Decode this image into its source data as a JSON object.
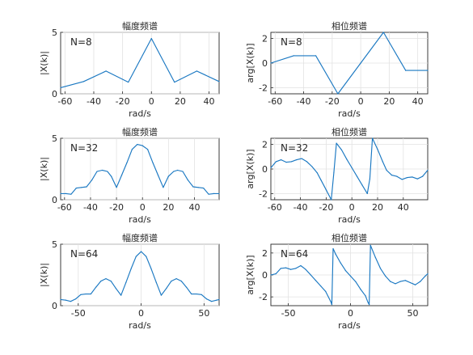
{
  "colors": {
    "line": "#1a78c2",
    "axis": "#262626",
    "grid": "#e2e2e2",
    "background": "#ffffff"
  },
  "chart_data": [
    {
      "type": "line",
      "title": "幅度频谱",
      "annotation": "N=8",
      "xlabel": "rad/s",
      "ylabel": "|X(k)|",
      "xlim": [
        -63,
        47
      ],
      "ylim": [
        0,
        5
      ],
      "xticks": [
        -60,
        -40,
        -20,
        0,
        20,
        40
      ],
      "yticks": [
        0,
        5
      ],
      "grid": true,
      "series": [
        {
          "x": [
            -63,
            -47,
            -31.5,
            -16,
            0,
            16,
            31.5,
            47
          ],
          "y": [
            0.5,
            1.0,
            1.85,
            0.95,
            4.5,
            0.95,
            1.85,
            1.0
          ]
        }
      ]
    },
    {
      "type": "line",
      "title": "相位频谱",
      "annotation": "N=8",
      "xlabel": "rad/s",
      "ylabel": "arg[X(k)]",
      "xlim": [
        -63,
        47
      ],
      "ylim": [
        -2.5,
        2.5
      ],
      "xticks": [
        -60,
        -40,
        -20,
        0,
        20,
        40
      ],
      "yticks": [
        -2,
        0,
        2
      ],
      "grid": true,
      "series": [
        {
          "x": [
            -63,
            -47,
            -31.5,
            -16,
            0,
            16,
            31.5,
            47
          ],
          "y": [
            0.0,
            0.6,
            0.6,
            -2.5,
            0.0,
            2.5,
            -0.6,
            -0.6
          ]
        }
      ]
    },
    {
      "type": "line",
      "title": "幅度频谱",
      "annotation": "N=32",
      "xlabel": "rad/s",
      "ylabel": "|X(k)|",
      "xlim": [
        -63,
        59
      ],
      "ylim": [
        0,
        5
      ],
      "xticks": [
        -60,
        -40,
        -20,
        0,
        20,
        40
      ],
      "yticks": [
        0,
        5
      ],
      "grid": true,
      "series": [
        {
          "x": [
            -63,
            -59,
            -55,
            -51,
            -47,
            -43,
            -39,
            -35,
            -31,
            -27,
            -24,
            -20,
            -16,
            -12,
            -8,
            -4,
            0,
            4,
            8,
            12,
            16,
            20,
            24,
            27,
            31,
            35,
            39,
            43,
            47,
            51,
            55,
            59
          ],
          "y": [
            0.5,
            0.5,
            0.45,
            0.95,
            1.0,
            1.05,
            1.6,
            2.3,
            2.4,
            2.3,
            1.9,
            1.0,
            2.0,
            3.0,
            4.1,
            4.5,
            4.4,
            4.1,
            3.0,
            2.0,
            1.0,
            1.9,
            2.3,
            2.4,
            2.3,
            1.6,
            1.05,
            1.0,
            0.95,
            0.45,
            0.5,
            0.5
          ]
        }
      ]
    },
    {
      "type": "line",
      "title": "相位频谱",
      "annotation": "N=32",
      "xlabel": "rad/s",
      "ylabel": "arg[X(k)]",
      "xlim": [
        -63,
        59
      ],
      "ylim": [
        -2.5,
        2.5
      ],
      "xticks": [
        -60,
        -40,
        -20,
        0,
        20,
        40
      ],
      "yticks": [
        -2,
        0,
        2
      ],
      "grid": true,
      "series": [
        {
          "x": [
            -63,
            -59,
            -55,
            -51,
            -47,
            -43,
            -39,
            -35,
            -31,
            -27,
            -24,
            -20,
            -16,
            -14,
            -12,
            -8,
            -4,
            0,
            4,
            8,
            12,
            14,
            16,
            20,
            24,
            27,
            31,
            35,
            39,
            43,
            47,
            51,
            55,
            59
          ],
          "y": [
            0.1,
            0.6,
            0.75,
            0.55,
            0.6,
            0.75,
            0.85,
            0.6,
            0.2,
            -0.3,
            -0.9,
            -1.7,
            -2.5,
            -0.3,
            2.1,
            1.55,
            0.8,
            0.1,
            -0.6,
            -1.3,
            -2.0,
            -0.8,
            2.5,
            1.6,
            0.6,
            -0.1,
            -0.5,
            -0.6,
            -0.85,
            -0.7,
            -0.65,
            -0.8,
            -0.6,
            -0.1
          ]
        }
      ]
    },
    {
      "type": "line",
      "title": "幅度频谱",
      "annotation": "N=64",
      "xlabel": "rad/s",
      "ylabel": "|X(k)|",
      "xlim": [
        -64,
        62
      ],
      "ylim": [
        0,
        5
      ],
      "xticks": [
        -50,
        0,
        50
      ],
      "yticks": [
        0,
        5
      ],
      "grid": true,
      "series": [
        {
          "x": [
            -64,
            -60,
            -56,
            -52,
            -48,
            -44,
            -40,
            -36,
            -32,
            -28,
            -24,
            -20,
            -16,
            -12,
            -8,
            -4,
            0,
            4,
            8,
            12,
            16,
            20,
            24,
            28,
            32,
            36,
            40,
            44,
            48,
            52,
            56,
            60,
            62
          ],
          "y": [
            0.5,
            0.45,
            0.35,
            0.55,
            0.9,
            0.95,
            0.95,
            1.5,
            2.0,
            2.2,
            2.0,
            1.4,
            0.85,
            1.9,
            3.0,
            4.0,
            4.4,
            4.0,
            3.0,
            1.9,
            0.85,
            1.4,
            2.0,
            2.2,
            2.0,
            1.5,
            0.95,
            0.95,
            0.9,
            0.55,
            0.35,
            0.45,
            0.5
          ]
        }
      ]
    },
    {
      "type": "line",
      "title": "相位频谱",
      "annotation": "N=64",
      "xlabel": "rad/s",
      "ylabel": "arg[X(k)]",
      "xlim": [
        -64,
        62
      ],
      "ylim": [
        -2.8,
        2.8
      ],
      "xticks": [
        -50,
        0,
        50
      ],
      "yticks": [
        -2,
        0,
        2
      ],
      "grid": true,
      "series": [
        {
          "x": [
            -64,
            -60,
            -56,
            -52,
            -48,
            -44,
            -40,
            -36,
            -32,
            -28,
            -24,
            -20,
            -16,
            -15,
            -14,
            -12,
            -8,
            -4,
            0,
            4,
            8,
            12,
            14,
            15,
            16,
            20,
            24,
            28,
            32,
            36,
            40,
            44,
            48,
            52,
            56,
            60,
            62
          ],
          "y": [
            0.0,
            0.1,
            0.6,
            0.65,
            0.5,
            0.6,
            0.85,
            0.5,
            0.0,
            -0.5,
            -1.0,
            -1.5,
            -2.4,
            -2.7,
            2.4,
            1.9,
            1.1,
            0.4,
            -0.1,
            -0.6,
            -1.3,
            -1.9,
            -2.5,
            -2.7,
            2.7,
            1.6,
            0.6,
            -0.1,
            -0.6,
            -0.8,
            -0.6,
            -0.5,
            -0.7,
            -0.9,
            -0.6,
            -0.1,
            0.1
          ]
        }
      ]
    }
  ]
}
